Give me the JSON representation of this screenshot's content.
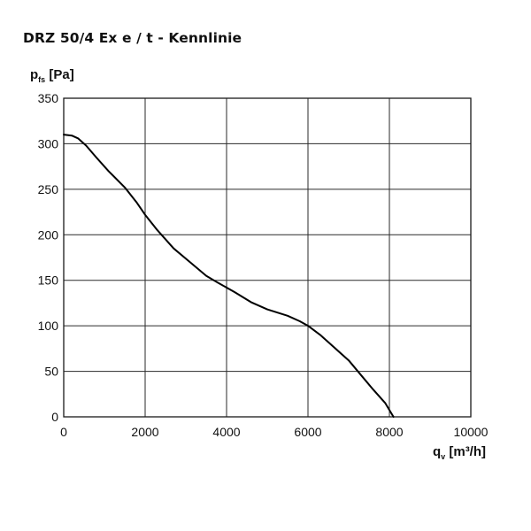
{
  "title": "DRZ 50/4 Ex e / t - Kennlinie",
  "chart_data": {
    "type": "line",
    "ylabel": {
      "main": "p",
      "sub": "fs",
      "unit": "[Pa]"
    },
    "xlabel": {
      "main": "q",
      "sub": "v",
      "unit": "[m³/h]"
    },
    "xlim": [
      0,
      10000
    ],
    "ylim": [
      0,
      350
    ],
    "xticks": [
      "0",
      "2000",
      "4000",
      "6000",
      "8000",
      "10000"
    ],
    "yticks": [
      "0",
      "50",
      "100",
      "150",
      "200",
      "250",
      "300",
      "350"
    ],
    "xtick_values": [
      0,
      2000,
      4000,
      6000,
      8000,
      10000
    ],
    "ytick_values": [
      0,
      50,
      100,
      150,
      200,
      250,
      300,
      350
    ],
    "grid": true,
    "series": [
      {
        "x": [
          0,
          200,
          350,
          550,
          800,
          1100,
          1500,
          1800,
          2000,
          2300,
          2700,
          3100,
          3500,
          3800,
          4200,
          4600,
          5000,
          5500,
          5800,
          6000,
          6300,
          6600,
          7000,
          7300,
          7600,
          7900,
          8100
        ],
        "y": [
          310,
          309,
          306,
          298,
          285,
          270,
          252,
          235,
          222,
          205,
          185,
          170,
          155,
          147,
          137,
          126,
          118,
          111,
          105,
          100,
          90,
          78,
          62,
          46,
          30,
          15,
          0
        ]
      }
    ],
    "line_color": "#000000"
  }
}
